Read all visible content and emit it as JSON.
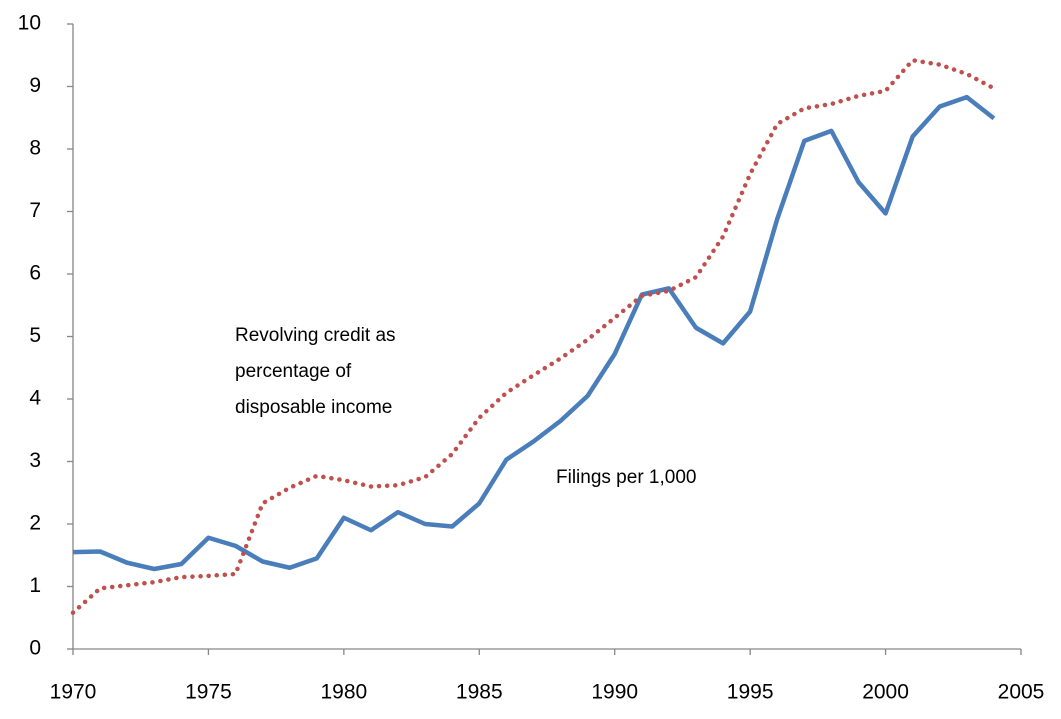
{
  "chart_data": {
    "type": "line",
    "x": [
      1970,
      1971,
      1972,
      1973,
      1974,
      1975,
      1976,
      1977,
      1978,
      1979,
      1980,
      1981,
      1982,
      1983,
      1984,
      1985,
      1986,
      1987,
      1988,
      1989,
      1990,
      1991,
      1992,
      1993,
      1994,
      1995,
      1996,
      1997,
      1998,
      1999,
      2000,
      2001,
      2002,
      2003,
      2004
    ],
    "series": [
      {
        "name": [
          "Filings per 1,000"
        ],
        "color": "#4a7ebb",
        "style": "solid",
        "values": [
          1.55,
          1.56,
          1.38,
          1.28,
          1.36,
          1.78,
          1.65,
          1.4,
          1.3,
          1.45,
          2.1,
          1.9,
          2.19,
          2.0,
          1.96,
          2.33,
          3.03,
          3.32,
          3.65,
          4.05,
          4.72,
          5.67,
          5.77,
          5.14,
          4.89,
          5.4,
          6.88,
          8.13,
          8.29,
          7.47,
          6.97,
          8.2,
          8.68,
          8.83,
          8.49
        ]
      },
      {
        "name": [
          "Revolving credit as",
          "percentage of",
          "disposable income"
        ],
        "color": "#c0504d",
        "style": "dotted",
        "values": [
          0.58,
          0.97,
          1.02,
          1.07,
          1.15,
          1.17,
          1.2,
          2.33,
          2.58,
          2.77,
          2.7,
          2.6,
          2.62,
          2.75,
          3.12,
          3.7,
          4.1,
          4.38,
          4.65,
          4.95,
          5.3,
          5.65,
          5.73,
          5.95,
          6.6,
          7.6,
          8.4,
          8.65,
          8.72,
          8.85,
          8.93,
          9.42,
          9.35,
          9.2,
          8.97
        ]
      }
    ],
    "xlim": [
      1970,
      2005
    ],
    "xticks": [
      1970,
      1975,
      1980,
      1985,
      1990,
      1995,
      2000,
      2005
    ],
    "ylim": [
      0,
      10
    ],
    "yticks": [
      0,
      1,
      2,
      3,
      4,
      5,
      6,
      7,
      8,
      9,
      10
    ],
    "grid": false,
    "legend": false
  }
}
